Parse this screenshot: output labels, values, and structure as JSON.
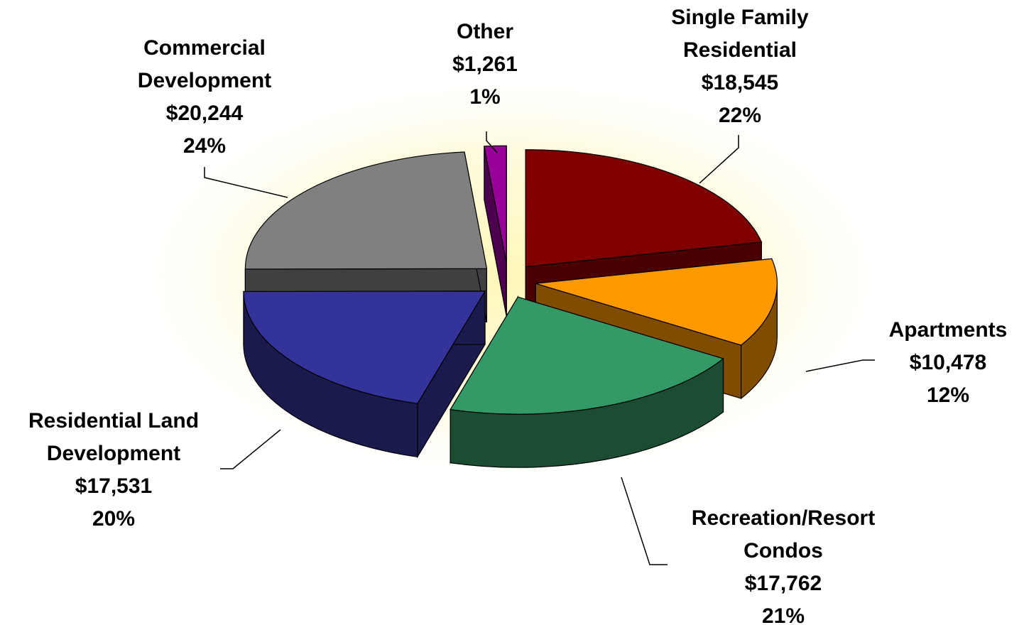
{
  "chart_data": {
    "type": "pie3d",
    "categories": [
      "Single Family Residential",
      "Apartments",
      "Recreation/Resort Condos",
      "Residential Land Development",
      "Commercial Development",
      "Other"
    ],
    "values": [
      18545,
      10478,
      17762,
      17531,
      20244,
      1261
    ],
    "value_labels": [
      "$18,545",
      "$10,478",
      "$17,762",
      "$17,531",
      "$20,244",
      "$1,261"
    ],
    "percent_labels": [
      "22%",
      "12%",
      "21%",
      "20%",
      "24%",
      "1%"
    ],
    "colors": [
      "#800000",
      "#ff9900",
      "#339966",
      "#333399",
      "#808080",
      "#990099"
    ],
    "side_colors": [
      "#4a0000",
      "#804c00",
      "#1b4d33",
      "#1a1a4d",
      "#404040",
      "#4d004d"
    ]
  }
}
